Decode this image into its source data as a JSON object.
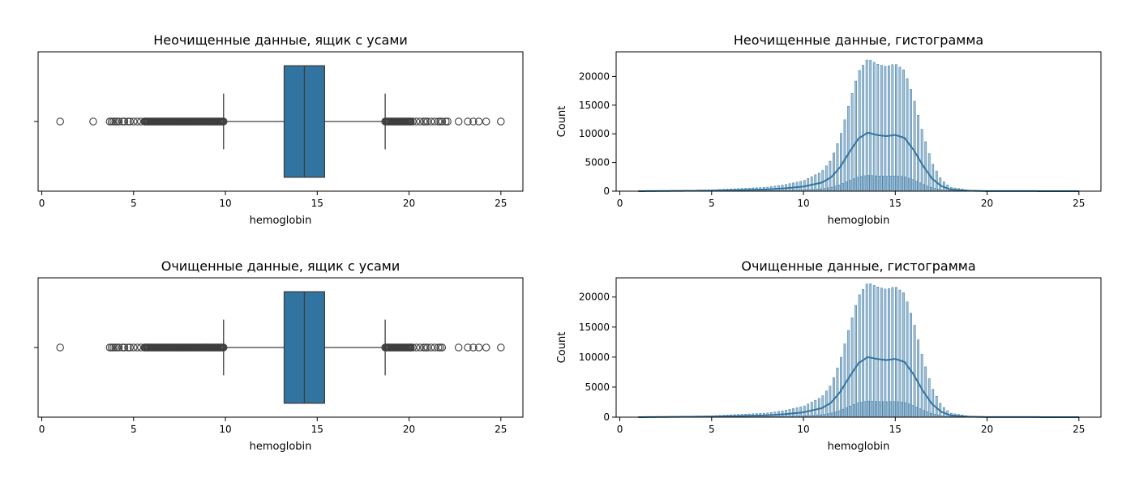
{
  "chart_data": [
    {
      "type": "boxplot",
      "title": "Неочищенные данные, ящик с усами",
      "xlabel": "hemoglobin",
      "ylabel": "",
      "xlim": [
        -0.2,
        26.2
      ],
      "xticks": [
        0,
        5,
        10,
        15,
        20,
        25
      ],
      "color": "#3274a1",
      "box": {
        "q1": 13.2,
        "median": 14.3,
        "q3": 15.4,
        "whisker_low": 9.9,
        "whisker_high": 18.7
      },
      "outliers_low": [
        1.0,
        2.8,
        3.7,
        3.8,
        3.9,
        4.0,
        4.1,
        4.2,
        4.4,
        4.5,
        4.7,
        4.8,
        5.0,
        5.2,
        5.4,
        5.6
      ],
      "outlier_range_low": [
        5.6,
        9.9
      ],
      "outlier_range_high": [
        18.7,
        20.1
      ],
      "outliers_high": [
        20.1,
        20.2,
        20.4,
        20.6,
        20.8,
        20.9,
        21.0,
        21.2,
        21.4,
        21.6,
        21.7,
        21.8,
        22.0,
        22.1,
        22.7,
        23.2,
        23.5,
        23.8,
        24.2,
        25.0
      ]
    },
    {
      "type": "histogram",
      "title": "Неочищенные данные, гистограмма",
      "xlabel": "hemoglobin",
      "ylabel": "Count",
      "xlim": [
        -0.2,
        26.2
      ],
      "ylim": [
        0,
        24300
      ],
      "xticks": [
        0,
        5,
        10,
        15,
        20,
        25
      ],
      "yticks": [
        0,
        5000,
        10000,
        15000,
        20000
      ],
      "bin_range": [
        1.0,
        25.0
      ],
      "bin_width": 0.1,
      "peak_count": 23100,
      "kde": {
        "x": [
          1,
          5,
          8,
          9,
          10,
          11,
          11.5,
          12,
          12.5,
          13,
          13.5,
          14,
          14.5,
          15,
          15.5,
          16,
          16.5,
          17,
          17.5,
          18,
          19,
          20,
          25
        ],
        "y": [
          0,
          100,
          300,
          500,
          800,
          1500,
          2400,
          4200,
          6800,
          9200,
          10200,
          9800,
          9600,
          9800,
          9300,
          7200,
          4500,
          2200,
          900,
          300,
          80,
          20,
          0
        ]
      }
    },
    {
      "type": "boxplot",
      "title": "Очищенные данные, ящик с усами",
      "xlabel": "hemoglobin",
      "ylabel": "",
      "xlim": [
        -0.2,
        26.2
      ],
      "xticks": [
        0,
        5,
        10,
        15,
        20,
        25
      ],
      "color": "#3274a1",
      "box": {
        "q1": 13.2,
        "median": 14.3,
        "q3": 15.4,
        "whisker_low": 9.9,
        "whisker_high": 18.7
      },
      "outliers_low": [
        1.0,
        3.7,
        3.8,
        3.9,
        4.0,
        4.1,
        4.2,
        4.4,
        4.5,
        4.7,
        4.8,
        5.0,
        5.2,
        5.4,
        5.6
      ],
      "outlier_range_low": [
        5.6,
        9.9
      ],
      "outlier_range_high": [
        18.7,
        20.1
      ],
      "outliers_high": [
        20.1,
        20.2,
        20.4,
        20.6,
        20.8,
        20.9,
        21.0,
        21.2,
        21.4,
        21.6,
        21.7,
        21.8,
        22.7,
        23.2,
        23.5,
        23.8,
        24.2,
        25.0
      ]
    },
    {
      "type": "histogram",
      "title": "Очищенные данные, гистограмма",
      "xlabel": "hemoglobin",
      "ylabel": "Count",
      "xlim": [
        -0.2,
        26.2
      ],
      "ylim": [
        0,
        23200
      ],
      "xticks": [
        0,
        5,
        10,
        15,
        20,
        25
      ],
      "yticks": [
        0,
        5000,
        10000,
        15000,
        20000
      ],
      "bin_range": [
        1.0,
        25.0
      ],
      "bin_width": 0.1,
      "peak_count": 22400,
      "kde": {
        "x": [
          1,
          5,
          8,
          9,
          10,
          11,
          11.5,
          12,
          12.5,
          13,
          13.5,
          14,
          14.5,
          15,
          15.5,
          16,
          16.5,
          17,
          17.5,
          18,
          19,
          20,
          25
        ],
        "y": [
          0,
          100,
          300,
          500,
          800,
          1500,
          2400,
          4200,
          6700,
          9000,
          10000,
          9700,
          9500,
          9700,
          9200,
          7100,
          4400,
          2200,
          900,
          300,
          80,
          20,
          0
        ]
      }
    }
  ]
}
